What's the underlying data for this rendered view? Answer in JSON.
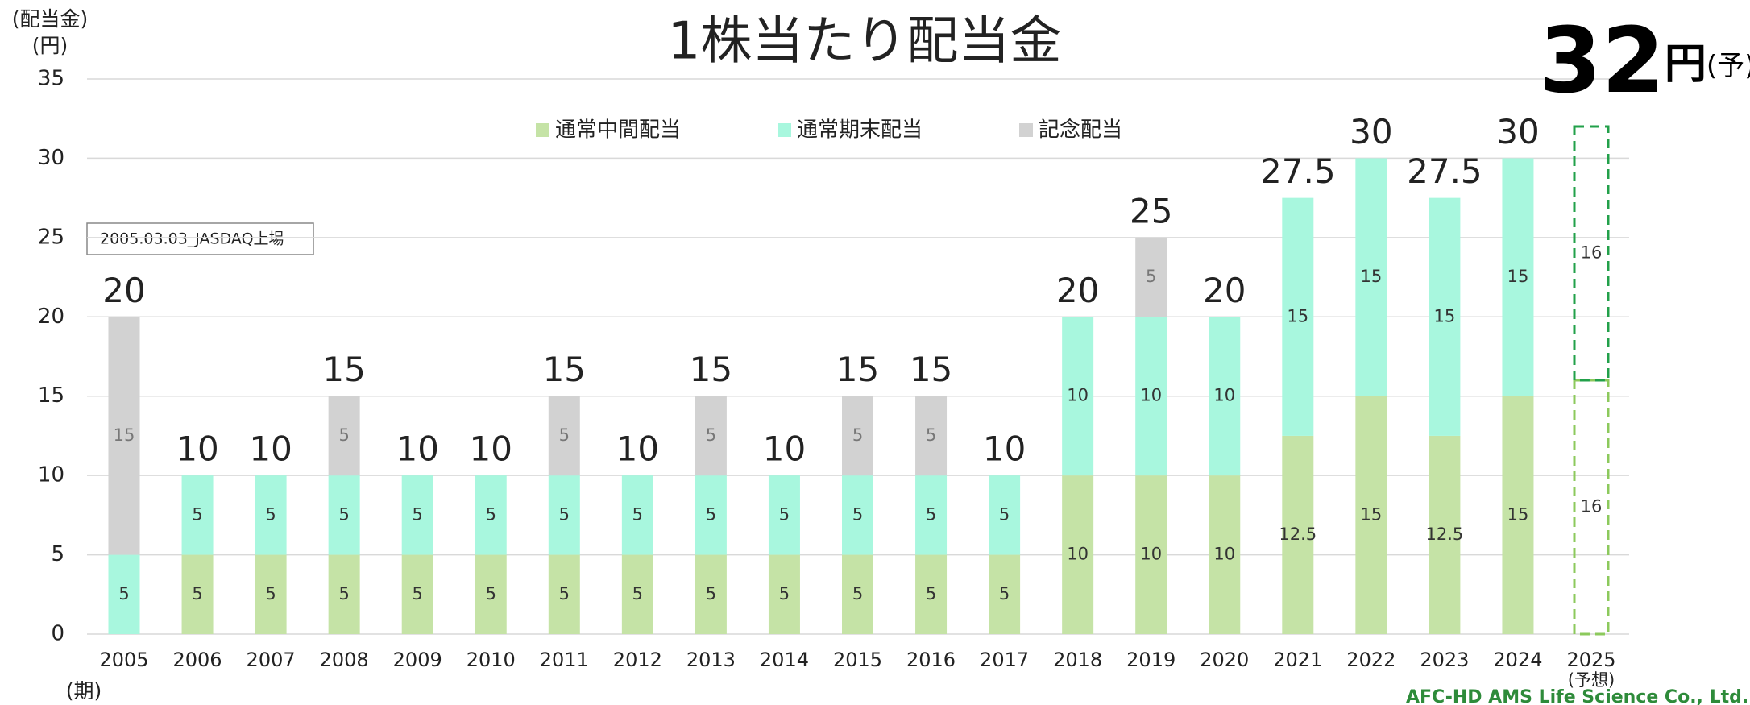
{
  "chart_data": {
    "type": "stacked_bar",
    "title": "1株当たり配当金",
    "ylabel": [
      "(配当金)",
      "(円)"
    ],
    "xlabel": "(期)",
    "annotation": "2005.03.03_JASDAQ上場",
    "categories": [
      "2005",
      "2006",
      "2007",
      "2008",
      "2009",
      "2010",
      "2011",
      "2012",
      "2013",
      "2014",
      "2015",
      "2016",
      "2017",
      "2018",
      "2019",
      "2020",
      "2021",
      "2022",
      "2023",
      "2024",
      "2025"
    ],
    "forecast_category": "2025",
    "forecast_note": "(予想)",
    "series": [
      {
        "name": "通常中間配当",
        "color": "#c5e3a6",
        "values": [
          null,
          5,
          5,
          5,
          5,
          5,
          5,
          5,
          5,
          5,
          5,
          5,
          5,
          10,
          10,
          10,
          12.5,
          15,
          12.5,
          15,
          16
        ]
      },
      {
        "name": "通常期末配当",
        "color": "#a8f7de",
        "values": [
          5,
          5,
          5,
          5,
          5,
          5,
          5,
          5,
          5,
          5,
          5,
          5,
          5,
          10,
          10,
          10,
          15,
          15,
          15,
          15,
          16
        ]
      },
      {
        "name": "記念配当",
        "color": "#d2d2d2",
        "values": [
          15,
          null,
          null,
          5,
          null,
          null,
          5,
          null,
          5,
          null,
          5,
          5,
          null,
          null,
          5,
          null,
          null,
          null,
          null,
          null,
          null
        ]
      }
    ],
    "forecast_colors": [
      "#8cc95c",
      "#22a04a"
    ],
    "totals": [
      20,
      10,
      10,
      15,
      10,
      10,
      15,
      10,
      15,
      10,
      15,
      15,
      10,
      20,
      25,
      20,
      27.5,
      30,
      27.5,
      30,
      32
    ],
    "forecast_unit": "円",
    "forecast_mark": "(予)",
    "footer": "AFC-HD AMS Life Science Co., Ltd.",
    "ylim": [
      0,
      35
    ],
    "yticks": [
      0,
      5,
      10,
      15,
      20,
      25,
      30,
      35
    ],
    "grid": true
  }
}
